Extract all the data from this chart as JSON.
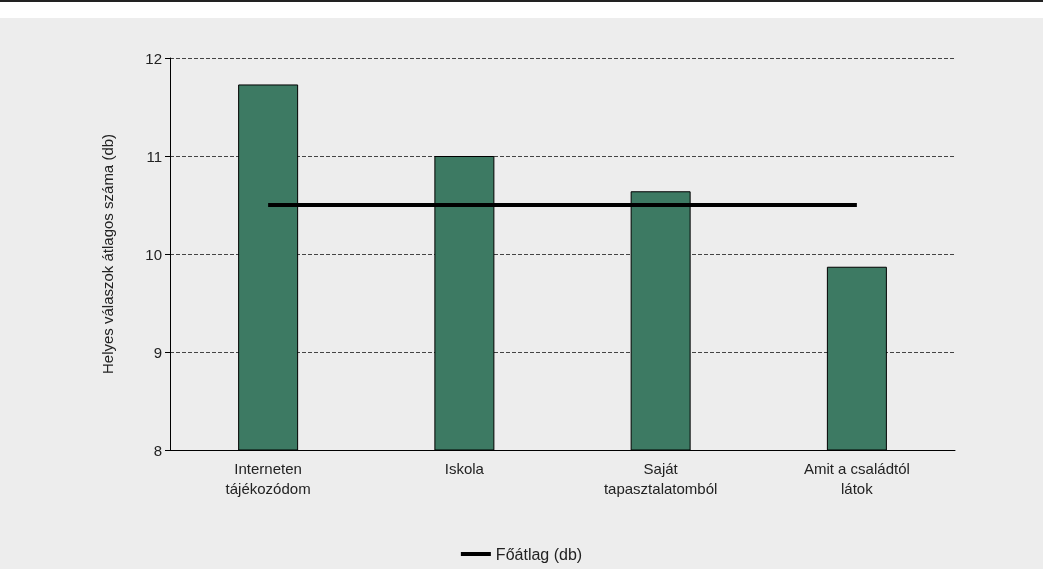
{
  "chart_data": {
    "type": "bar",
    "ylabel": "Helyes válaszok átlagos száma (db)",
    "categories": [
      "Interneten\ntájékozódom",
      "Iskola",
      "Saját\ntapasztalatomból",
      "Amit a családtól\nlátok"
    ],
    "series": [
      {
        "color": "#3d7a63",
        "values": [
          11.73,
          11.0,
          10.64,
          9.87
        ]
      },
      {
        "type": "line",
        "name": "Főátlag (db)",
        "color": "#000000",
        "values": [
          10.5,
          10.5,
          10.5,
          10.5
        ],
        "marker": "none"
      }
    ],
    "ylim": [
      8,
      12
    ],
    "yticks": [
      8,
      9,
      10,
      11,
      12
    ],
    "grid": "y",
    "legend": "bottom"
  }
}
